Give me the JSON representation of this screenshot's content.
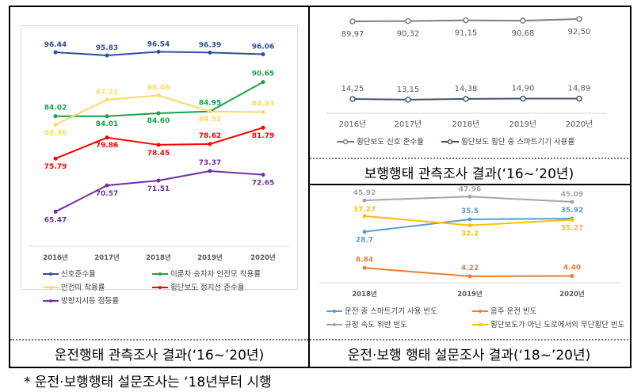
{
  "footnote": "* 운전·보행행태 설문조사는 ‘18년부터 시행",
  "panels": {
    "left_caption": "운전행태 관측조사 결과(‘16~’20년)",
    "top_right_caption": "보행행태 관측조사 결과(‘16~’20년)",
    "bottom_right_caption": "운전·보행 행태 설문조사 결과(‘18~’20년)"
  },
  "chart_data": [
    {
      "type": "line",
      "title": "운전행태 관측조사 결과(‘16~’20년)",
      "categories": [
        "2016년",
        "2017년",
        "2018년",
        "2019년",
        "2020년"
      ],
      "legend_position": "bottom",
      "series": [
        {
          "name": "신호준수율",
          "color": "#2f4f9b",
          "values": [
            96.44,
            95.83,
            96.54,
            96.39,
            96.06
          ],
          "labels": [
            "96.44",
            "95.83",
            "96.54",
            "96.39",
            "96.06"
          ]
        },
        {
          "name": "이륜차 승차자 안전모 착용률",
          "color": "#17a349",
          "values": [
            84.02,
            84.01,
            84.6,
            84.95,
            90.65
          ],
          "labels": [
            "84.02",
            "84.01",
            "84.60",
            "84.95",
            "90.65"
          ]
        },
        {
          "name": "안전띠 착용률",
          "color": "#ffd966",
          "values": [
            82.36,
            87.21,
            88.08,
            84.92,
            84.83
          ],
          "labels": [
            "82.36",
            "87.21",
            "88.08",
            "84.92",
            "84.83"
          ]
        },
        {
          "name": "횡단보도 정지선 준수율",
          "color": "#ff0000",
          "values": [
            75.79,
            79.86,
            78.45,
            78.62,
            81.79
          ],
          "labels": [
            "75.79",
            "79.86",
            "78.45",
            "78.62",
            "81.79"
          ]
        },
        {
          "name": "방향지시등 점등률",
          "color": "#7030a0",
          "values": [
            65.47,
            70.57,
            71.51,
            73.37,
            72.65
          ],
          "labels": [
            "65.47",
            "70.57",
            "71.51",
            "73.37",
            "72.65"
          ]
        }
      ]
    },
    {
      "type": "line",
      "title": "보행행태 관측조사 결과(‘16~’20년)",
      "categories": [
        "2016년",
        "2017년",
        "2018년",
        "2019년",
        "2020년"
      ],
      "legend_position": "bottom",
      "series": [
        {
          "name": "횡단보도 신호 준수율",
          "color": "#7f7f7f",
          "values": [
            89.97,
            90.32,
            91.15,
            90.68,
            92.5
          ],
          "labels": [
            "89,97",
            "90,32",
            "91,15",
            "90,68",
            "92,50"
          ]
        },
        {
          "name": "횡단보도 횡단 중 스마트기기 사용률",
          "color": "#44546a",
          "values": [
            14.25,
            13.15,
            14.38,
            14.9,
            14.89
          ],
          "labels": [
            "14,25",
            "13,15",
            "14,38",
            "14,90",
            "14,89"
          ]
        }
      ]
    },
    {
      "type": "line",
      "title": "운전·보행 행태 설문조사 결과(‘18~’20년)",
      "categories": [
        "2018년",
        "2019년",
        "2020년"
      ],
      "legend_position": "bottom",
      "series": [
        {
          "name": "운전 중 스마트기기 사용 빈도",
          "color": "#5b9bd5",
          "values": [
            28.7,
            35.5,
            35.92
          ],
          "labels": [
            "28.7",
            "35.5",
            "35.92"
          ]
        },
        {
          "name": "음주 운전 빈도",
          "color": "#ed7d31",
          "values": [
            8.84,
            4.22,
            4.4
          ],
          "labels": [
            "8.84",
            "4.22",
            "4.40"
          ]
        },
        {
          "name": "규정 속도 위반 빈도",
          "color": "#a5a5a5",
          "values": [
            45.92,
            47.96,
            45.09
          ],
          "labels": [
            "45.92",
            "47.96",
            "45.09"
          ]
        },
        {
          "name": "횡단보도가 아닌 도로에서의 무단횡단 빈도",
          "color": "#ffc000",
          "values": [
            37.27,
            32.2,
            35.27
          ],
          "labels": [
            "37.27",
            "32.2",
            "35.27"
          ]
        }
      ]
    }
  ]
}
